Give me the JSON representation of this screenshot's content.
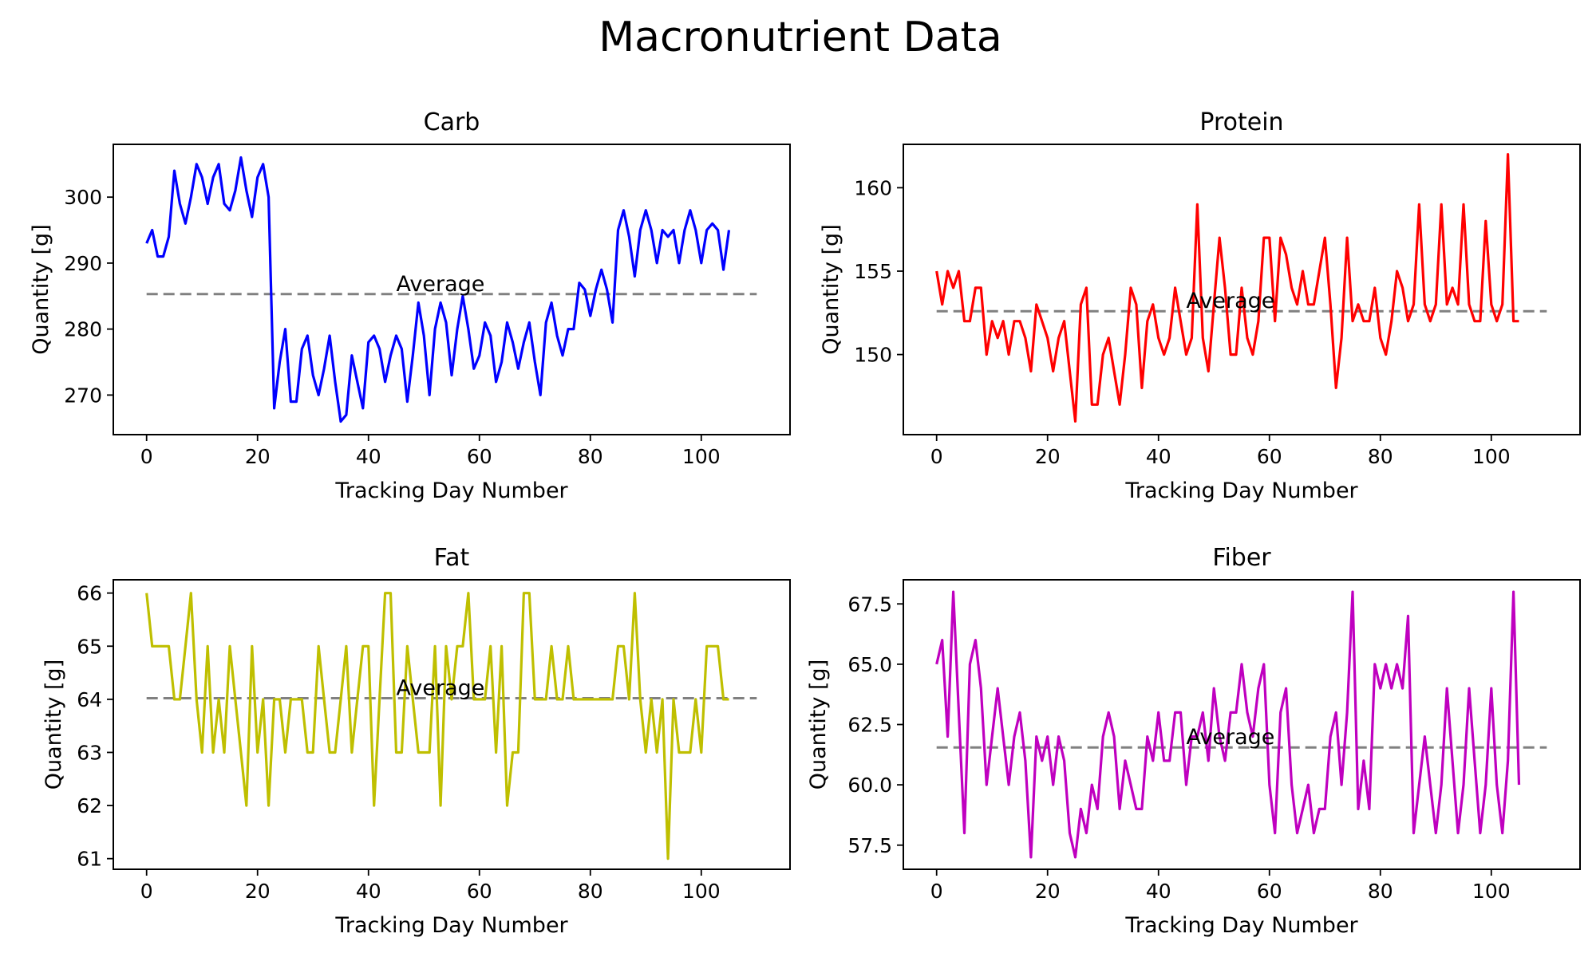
{
  "figure_title": "Macronutrient Data",
  "chart_data": [
    {
      "type": "line",
      "title": "Carb",
      "xlabel": "Tracking Day Number",
      "ylabel": "Quantity [g]",
      "color": "#0000ff",
      "xlim": [
        -6,
        116
      ],
      "ylim": [
        264,
        308
      ],
      "xticks": [
        0,
        20,
        40,
        60,
        80,
        100
      ],
      "yticks": [
        270,
        280,
        290,
        300
      ],
      "average": {
        "value": 285.3,
        "x_range": [
          0,
          110
        ],
        "label": "Average",
        "label_x": 45,
        "color": "#808080"
      },
      "x": [
        0,
        1,
        2,
        3,
        4,
        5,
        6,
        7,
        8,
        9,
        10,
        11,
        12,
        13,
        14,
        15,
        16,
        17,
        18,
        19,
        20,
        21,
        22,
        23,
        24,
        25,
        26,
        27,
        28,
        29,
        30,
        31,
        32,
        33,
        34,
        35,
        36,
        37,
        38,
        39,
        40,
        41,
        42,
        43,
        44,
        45,
        46,
        47,
        48,
        49,
        50,
        51,
        52,
        53,
        54,
        55,
        56,
        57,
        58,
        59,
        60,
        61,
        62,
        63,
        64,
        65,
        66,
        67,
        68,
        69,
        70,
        71,
        72,
        73,
        74,
        75,
        76,
        77,
        78,
        79,
        80,
        81,
        82,
        83,
        84,
        85,
        86,
        87,
        88,
        89,
        90,
        91,
        92,
        93,
        94,
        95,
        96,
        97,
        98,
        99,
        100,
        101,
        102,
        103,
        104,
        105
      ],
      "series": [
        {
          "values": [
            293,
            295,
            291,
            291,
            294,
            304,
            299,
            296,
            300,
            305,
            303,
            299,
            303,
            305,
            299,
            298,
            301,
            306,
            301,
            297,
            303,
            305,
            300,
            268,
            275,
            280,
            269,
            269,
            277,
            279,
            273,
            270,
            274,
            279,
            272,
            266,
            267,
            276,
            272,
            268,
            278,
            279,
            277,
            272,
            276,
            279,
            277,
            269,
            276,
            284,
            279,
            270,
            280,
            284,
            281,
            273,
            280,
            285,
            280,
            274,
            276,
            281,
            279,
            272,
            275,
            281,
            278,
            274,
            278,
            281,
            275,
            270,
            281,
            284,
            279,
            276,
            280,
            280,
            287,
            286,
            282,
            286,
            289,
            286,
            281,
            295,
            298,
            294,
            288,
            295,
            298,
            295,
            290,
            295,
            294,
            295,
            290,
            295,
            298,
            295,
            290,
            295,
            296,
            295,
            289,
            295
          ]
        }
      ]
    },
    {
      "type": "line",
      "title": "Protein",
      "xlabel": "Tracking Day Number",
      "ylabel": "Quantity [g]",
      "color": "#ff0000",
      "xlim": [
        -6,
        116
      ],
      "ylim": [
        145.2,
        162.6
      ],
      "xticks": [
        0,
        20,
        40,
        60,
        80,
        100
      ],
      "yticks": [
        150,
        155,
        160
      ],
      "average": {
        "value": 152.6,
        "x_range": [
          0,
          110
        ],
        "label": "Average",
        "label_x": 45,
        "color": "#808080"
      },
      "x": [
        0,
        1,
        2,
        3,
        4,
        5,
        6,
        7,
        8,
        9,
        10,
        11,
        12,
        13,
        14,
        15,
        16,
        17,
        18,
        19,
        20,
        21,
        22,
        23,
        24,
        25,
        26,
        27,
        28,
        29,
        30,
        31,
        32,
        33,
        34,
        35,
        36,
        37,
        38,
        39,
        40,
        41,
        42,
        43,
        44,
        45,
        46,
        47,
        48,
        49,
        50,
        51,
        52,
        53,
        54,
        55,
        56,
        57,
        58,
        59,
        60,
        61,
        62,
        63,
        64,
        65,
        66,
        67,
        68,
        69,
        70,
        71,
        72,
        73,
        74,
        75,
        76,
        77,
        78,
        79,
        80,
        81,
        82,
        83,
        84,
        85,
        86,
        87,
        88,
        89,
        90,
        91,
        92,
        93,
        94,
        95,
        96,
        97,
        98,
        99,
        100,
        101,
        102,
        103,
        104,
        105
      ],
      "series": [
        {
          "values": [
            155,
            153,
            155,
            154,
            155,
            152,
            152,
            154,
            154,
            150,
            152,
            151,
            152,
            150,
            152,
            152,
            151,
            149,
            153,
            152,
            151,
            149,
            151,
            152,
            149,
            146,
            153,
            154,
            147,
            147,
            150,
            151,
            149,
            147,
            150,
            154,
            153,
            148,
            152,
            153,
            151,
            150,
            151,
            154,
            152,
            150,
            151,
            159,
            151,
            149,
            153,
            157,
            154,
            150,
            150,
            154,
            151,
            150,
            152,
            157,
            157,
            152,
            157,
            156,
            154,
            153,
            155,
            153,
            153,
            155,
            157,
            153,
            148,
            151,
            157,
            152,
            153,
            152,
            152,
            154,
            151,
            150,
            152,
            155,
            154,
            152,
            153,
            159,
            153,
            152,
            153,
            159,
            153,
            154,
            153,
            159,
            153,
            152,
            152,
            158,
            153,
            152,
            153,
            162,
            152,
            152
          ]
        }
      ]
    },
    {
      "type": "line",
      "title": "Fat",
      "xlabel": "Tracking Day Number",
      "ylabel": "Quantity [g]",
      "color": "#bfbf00",
      "xlim": [
        -6,
        116
      ],
      "ylim": [
        60.8,
        66.25
      ],
      "xticks": [
        0,
        20,
        40,
        60,
        80,
        100
      ],
      "yticks": [
        61,
        62,
        63,
        64,
        65,
        66
      ],
      "average": {
        "value": 64.02,
        "x_range": [
          0,
          110
        ],
        "label": "Average",
        "label_x": 45,
        "color": "#808080"
      },
      "x": [
        0,
        1,
        2,
        3,
        4,
        5,
        6,
        7,
        8,
        9,
        10,
        11,
        12,
        13,
        14,
        15,
        16,
        17,
        18,
        19,
        20,
        21,
        22,
        23,
        24,
        25,
        26,
        27,
        28,
        29,
        30,
        31,
        32,
        33,
        34,
        35,
        36,
        37,
        38,
        39,
        40,
        41,
        42,
        43,
        44,
        45,
        46,
        47,
        48,
        49,
        50,
        51,
        52,
        53,
        54,
        55,
        56,
        57,
        58,
        59,
        60,
        61,
        62,
        63,
        64,
        65,
        66,
        67,
        68,
        69,
        70,
        71,
        72,
        73,
        74,
        75,
        76,
        77,
        78,
        79,
        80,
        81,
        82,
        83,
        84,
        85,
        86,
        87,
        88,
        89,
        90,
        91,
        92,
        93,
        94,
        95,
        96,
        97,
        98,
        99,
        100,
        101,
        102,
        103,
        104,
        105
      ],
      "series": [
        {
          "values": [
            66,
            65,
            65,
            65,
            65,
            64,
            64,
            65,
            66,
            64,
            63,
            65,
            63,
            64,
            63,
            65,
            64,
            63,
            62,
            65,
            63,
            64,
            62,
            64,
            64,
            63,
            64,
            64,
            64,
            63,
            63,
            65,
            64,
            63,
            63,
            64,
            65,
            63,
            64,
            65,
            65,
            62,
            64,
            66,
            66,
            63,
            63,
            65,
            64,
            63,
            63,
            63,
            65,
            62,
            65,
            64,
            65,
            65,
            66,
            64,
            64,
            64,
            65,
            63,
            65,
            62,
            63,
            63,
            66,
            66,
            64,
            64,
            64,
            65,
            64,
            64,
            65,
            64,
            64,
            64,
            64,
            64,
            64,
            64,
            64,
            65,
            65,
            64,
            66,
            64,
            63,
            64,
            63,
            64,
            61,
            64,
            63,
            63,
            63,
            64,
            63,
            65,
            65,
            65,
            64,
            64
          ]
        }
      ]
    },
    {
      "type": "line",
      "title": "Fiber",
      "xlabel": "Tracking Day Number",
      "ylabel": "Quantity [g]",
      "color": "#bf00bf",
      "xlim": [
        -6,
        116
      ],
      "ylim": [
        56.5,
        68.5
      ],
      "xticks": [
        0,
        20,
        40,
        60,
        80,
        100
      ],
      "yticks": [
        57.5,
        60.0,
        62.5,
        65.0,
        67.5
      ],
      "average": {
        "value": 61.55,
        "x_range": [
          0,
          110
        ],
        "label": "Average",
        "label_x": 45,
        "color": "#808080"
      },
      "x": [
        0,
        1,
        2,
        3,
        4,
        5,
        6,
        7,
        8,
        9,
        10,
        11,
        12,
        13,
        14,
        15,
        16,
        17,
        18,
        19,
        20,
        21,
        22,
        23,
        24,
        25,
        26,
        27,
        28,
        29,
        30,
        31,
        32,
        33,
        34,
        35,
        36,
        37,
        38,
        39,
        40,
        41,
        42,
        43,
        44,
        45,
        46,
        47,
        48,
        49,
        50,
        51,
        52,
        53,
        54,
        55,
        56,
        57,
        58,
        59,
        60,
        61,
        62,
        63,
        64,
        65,
        66,
        67,
        68,
        69,
        70,
        71,
        72,
        73,
        74,
        75,
        76,
        77,
        78,
        79,
        80,
        81,
        82,
        83,
        84,
        85,
        86,
        87,
        88,
        89,
        90,
        91,
        92,
        93,
        94,
        95,
        96,
        97,
        98,
        99,
        100,
        101,
        102,
        103,
        104,
        105
      ],
      "series": [
        {
          "values": [
            65,
            66,
            62,
            68,
            63,
            58,
            65,
            66,
            64,
            60,
            62,
            64,
            62,
            60,
            62,
            63,
            61,
            57,
            62,
            61,
            62,
            60,
            62,
            61,
            58,
            57,
            59,
            58,
            60,
            59,
            62,
            63,
            62,
            59,
            61,
            60,
            59,
            59,
            62,
            61,
            63,
            61,
            61,
            63,
            63,
            60,
            62,
            62,
            63,
            61,
            64,
            62,
            61,
            63,
            63,
            65,
            63,
            62,
            64,
            65,
            60,
            58,
            63,
            64,
            60,
            58,
            59,
            60,
            58,
            59,
            59,
            62,
            63,
            60,
            63,
            68,
            59,
            61,
            59,
            65,
            64,
            65,
            64,
            65,
            64,
            67,
            58,
            60,
            62,
            60,
            58,
            60,
            64,
            61,
            58,
            60,
            64,
            61,
            58,
            60,
            64,
            60,
            58,
            61,
            68,
            60
          ]
        }
      ]
    }
  ]
}
